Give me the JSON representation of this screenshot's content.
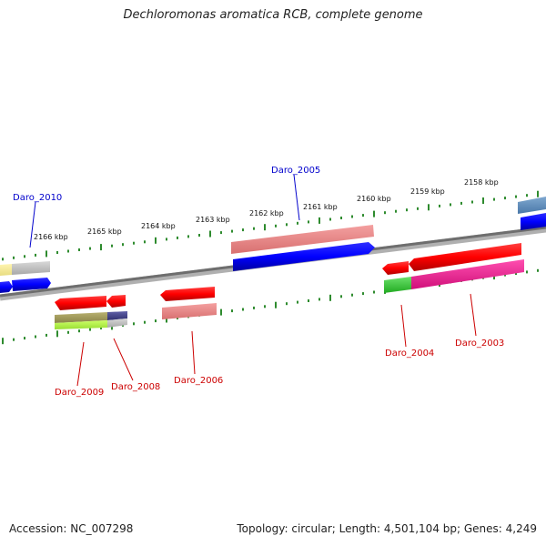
{
  "title": "Dechloromonas aromatica RCB, complete genome",
  "accession": "Accession: NC_007298",
  "topology": "Topology: circular; Length: 4,501,104 bp; Genes: 4,249",
  "ruler": {
    "tick_color": "#2e8b2e",
    "labels": [
      "2166 kbp",
      "2165 kbp",
      "2164 kbp",
      "2163 kbp",
      "2162 kbp",
      "2161 kbp",
      "2160 kbp",
      "2159 kbp",
      "2158 kbp"
    ]
  },
  "genes": [
    {
      "name": "Daro_2010",
      "color": "#0000cc"
    },
    {
      "name": "Daro_2009",
      "color": "#cc0000"
    },
    {
      "name": "Daro_2008",
      "color": "#cc0000"
    },
    {
      "name": "Daro_2006",
      "color": "#cc0000"
    },
    {
      "name": "Daro_2005",
      "color": "#0000cc"
    },
    {
      "name": "Daro_2004",
      "color": "#cc0000"
    },
    {
      "name": "Daro_2003",
      "color": "#cc0000"
    }
  ]
}
